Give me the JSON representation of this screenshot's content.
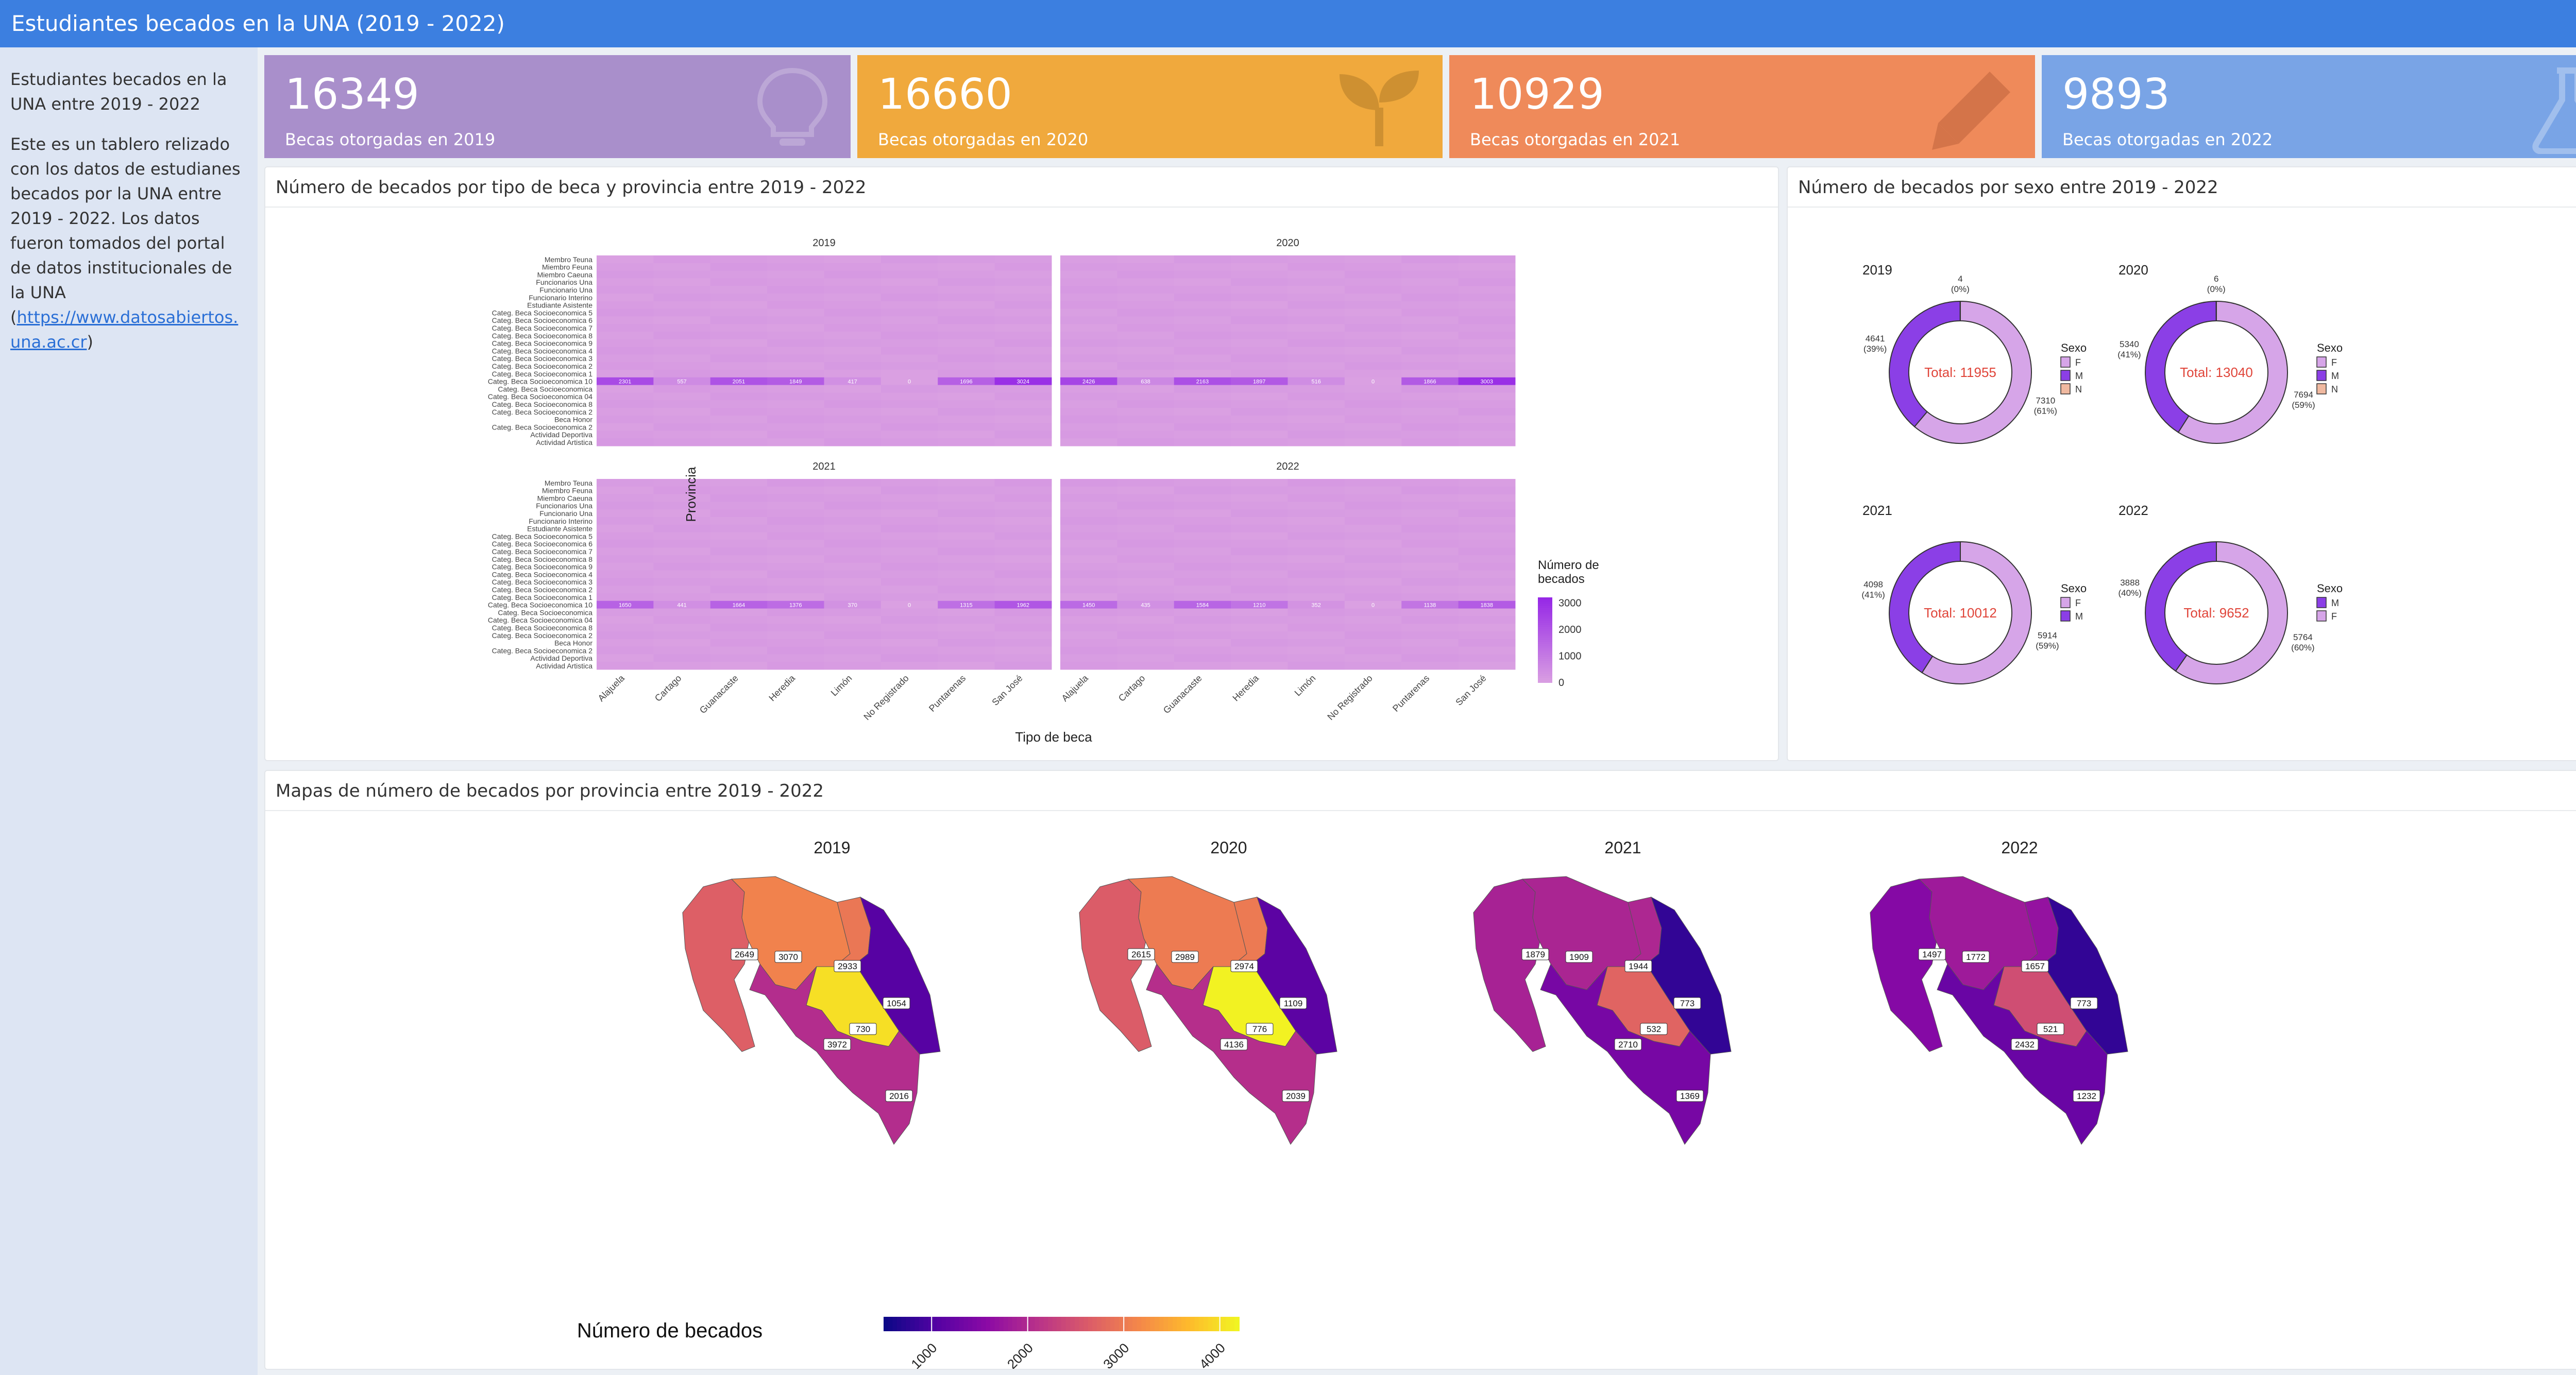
{
  "header": {
    "title": "Estudiantes becados en la UNA (2019 - 2022)"
  },
  "sidebar": {
    "intro": "Estudiantes becados en la UNA entre 2019 - 2022",
    "description": "Este es un tablero relizado con los datos de estudianes becados por la UNA entre 2019 - 2022. Los datos fueron tomados del portal de datos institucionales de la UNA (",
    "link": "https://www.datosabiertos.una.ac.cr",
    "description_end": ")"
  },
  "value_boxes": [
    {
      "value": "16349",
      "label": "Becas otorgadas en 2019",
      "color": "#a98fcb",
      "icon": "lightbulb-icon"
    },
    {
      "value": "16660",
      "label": "Becas otorgadas en 2020",
      "color": "#f0a93d",
      "icon": "seedling-icon"
    },
    {
      "value": "10929",
      "label": "Becas otorgadas en 2021",
      "color": "#ef8a5a",
      "icon": "pencil-icon"
    },
    {
      "value": "9893",
      "label": "Becas otorgadas en 2022",
      "color": "#79a4e6",
      "icon": "flask-icon"
    }
  ],
  "panels": {
    "heatmap": "Número de becados por tipo de beca y provincia entre 2019 - 2022",
    "donuts": "Número de becados por sexo entre 2019 - 2022",
    "maps": "Mapas de número de becados por provincia entre 2019 - 2022"
  },
  "chart_data": [
    {
      "type": "heatmap",
      "facets": [
        "2019",
        "2020",
        "2021",
        "2022"
      ],
      "xlabel": "Tipo de beca",
      "ylabel": "Provincia",
      "x_categories": [
        "Alajuela",
        "Cartago",
        "Guanacaste",
        "Heredia",
        "Limón",
        "No Registrado",
        "Puntarenas",
        "San José"
      ],
      "y_categories": [
        "Membro Teuna",
        "Miembro Feuna",
        "Miembro Caeuna",
        "Funcionarios Una",
        "Funcionario Una",
        "Funcionario Interino",
        "Estudiante Asistente",
        "Categ. Beca Socioeconomica 5",
        "Categ. Beca Socioeconomica 6",
        "Categ. Beca Socioeconomica 7",
        "Categ. Beca Socioeconomica 8",
        "Categ. Beca Socioeconomica 9",
        "Categ. Beca Socioeconomica 4",
        "Categ. Beca Socioeconomica 3",
        "Categ. Beca Socioeconomica 2",
        "Categ. Beca Socioeconomica 1",
        "Categ. Beca Socioeconomica 10",
        "Categ. Beca Socioeconomica",
        "Categ. Beca Socioeconomica 04",
        "Categ. Beca Socioeconomica 8",
        "Categ. Beca Socioeconomica 2",
        "Beca Honor",
        "Categ. Beca Socioeconomica 2",
        "Actividad Deportiva",
        "Actividad Artistica"
      ],
      "legend_title": "Número de becados",
      "legend_ticks": [
        0,
        1000,
        2000,
        3000
      ],
      "highlight_row": "Categ. Beca Socioeconomica 10",
      "highlight_values": {
        "2019": [
          2301,
          557,
          2051,
          1849,
          417,
          0,
          1696,
          3024
        ],
        "2020": [
          2426,
          638,
          2163,
          1897,
          516,
          0,
          1866,
          3003
        ],
        "2021": [
          1650,
          441,
          1664,
          1376,
          370,
          0,
          1315,
          1962
        ],
        "2022": [
          1450,
          435,
          1584,
          1210,
          352,
          0,
          1138,
          1838
        ]
      }
    },
    {
      "type": "pie",
      "donut": true,
      "legend_title": "Sexo",
      "charts": [
        {
          "year": "2019",
          "total_label": "Total: 11955",
          "slices": [
            {
              "sexo": "F",
              "value": 7310,
              "pct": "(61%)"
            },
            {
              "sexo": "M",
              "value": 4641,
              "pct": "(39%)"
            },
            {
              "sexo": "N",
              "value": 4,
              "pct": "(0%)"
            }
          ],
          "legend": [
            "F",
            "M",
            "N"
          ]
        },
        {
          "year": "2020",
          "total_label": "Total: 13040",
          "slices": [
            {
              "sexo": "F",
              "value": 7694,
              "pct": "(59%)"
            },
            {
              "sexo": "M",
              "value": 5340,
              "pct": "(41%)"
            },
            {
              "sexo": "N",
              "value": 6,
              "pct": "(0%)"
            }
          ],
          "legend": [
            "F",
            "M",
            "N"
          ]
        },
        {
          "year": "2021",
          "total_label": "Total: 10012",
          "slices": [
            {
              "sexo": "F",
              "value": 5914,
              "pct": "(59%)"
            },
            {
              "sexo": "M",
              "value": 4098,
              "pct": "(41%)"
            }
          ],
          "legend": [
            "F",
            "M"
          ]
        },
        {
          "year": "2022",
          "total_label": "Total: 9652",
          "slices": [
            {
              "sexo": "F",
              "value": 5764,
              "pct": "(60%)"
            },
            {
              "sexo": "M",
              "value": 3888,
              "pct": "(40%)"
            }
          ],
          "legend": [
            "M",
            "F"
          ]
        }
      ],
      "colors": {
        "F": "#d6a5e8",
        "M": "#8b3fe6",
        "N": "#f0b9a0"
      }
    },
    {
      "type": "choropleth",
      "facets": [
        "2019",
        "2020",
        "2021",
        "2022"
      ],
      "legend_title": "Número de becados",
      "legend_ticks": [
        1000,
        2000,
        3000,
        4000
      ],
      "value_range": [
        500,
        4200
      ],
      "provinces": [
        "Guanacaste",
        "Alajuela",
        "Heredia",
        "Limón",
        "Cartago",
        "San José",
        "Puntarenas"
      ],
      "values": {
        "2019": {
          "Guanacaste": 2649,
          "Alajuela": 3070,
          "Heredia": 2933,
          "Limón": 1054,
          "Cartago": 730,
          "San José": 3972,
          "Puntarenas": 2016
        },
        "2020": {
          "Guanacaste": 2615,
          "Alajuela": 2989,
          "Heredia": 2974,
          "Limón": 1109,
          "Cartago": 776,
          "San José": 4136,
          "Puntarenas": 2039
        },
        "2021": {
          "Guanacaste": 1879,
          "Alajuela": 1909,
          "Heredia": 1944,
          "Limón": 773,
          "Cartago": 532,
          "San José": 2710,
          "Puntarenas": 1369
        },
        "2022": {
          "Guanacaste": 1497,
          "Alajuela": 1772,
          "Heredia": 1657,
          "Limón": 773,
          "Cartago": 521,
          "San José": 2432,
          "Puntarenas": 1232
        }
      }
    }
  ]
}
